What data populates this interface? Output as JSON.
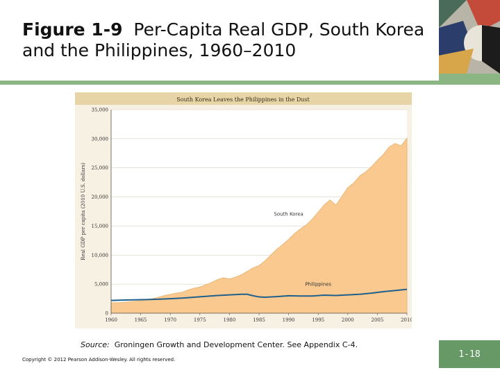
{
  "slide": {
    "title_bold": "Figure 1-9",
    "title_rest": "Per-Capita Real GDP, South Korea and the Philippines, 1960–2010",
    "source_label": "Source:",
    "source_text": "Groningen Growth and Development Center. See Appendix C-4.",
    "copyright": "Copyright © 2012 Pearson Addison-Wesley. All rights reserved.",
    "page_number": "1-18",
    "colors": {
      "accent_green": "#8bb582",
      "page_box": "#669966"
    }
  },
  "chart_data": {
    "type": "area",
    "title": "South Korea Leaves the Philippines in the Dust",
    "ylabel": "Real GDP per capita (2010 U.S. dollars)",
    "xlabel": "",
    "xlim": [
      1960,
      2010
    ],
    "ylim": [
      0,
      35000
    ],
    "x_ticks": [
      1960,
      1965,
      1970,
      1975,
      1980,
      1985,
      1990,
      1995,
      2000,
      2005,
      2010
    ],
    "y_ticks": [
      0,
      5000,
      10000,
      15000,
      20000,
      25000,
      30000,
      35000
    ],
    "y_tick_labels": [
      "0",
      "5,000",
      "10,000",
      "15,000",
      "20,000",
      "25,000",
      "30,000",
      "35,000"
    ],
    "grid": true,
    "series": [
      {
        "name": "South Korea",
        "color": "#f9c98f",
        "x": [
          1960,
          1961,
          1962,
          1963,
          1964,
          1965,
          1966,
          1967,
          1968,
          1969,
          1970,
          1971,
          1972,
          1973,
          1974,
          1975,
          1976,
          1977,
          1978,
          1979,
          1980,
          1981,
          1982,
          1983,
          1984,
          1985,
          1986,
          1987,
          1988,
          1989,
          1990,
          1991,
          1992,
          1993,
          1994,
          1995,
          1996,
          1997,
          1998,
          1999,
          2000,
          2001,
          2002,
          2003,
          2004,
          2005,
          2006,
          2007,
          2008,
          2009,
          2010
        ],
        "y": [
          1800,
          1800,
          1850,
          1950,
          2050,
          2150,
          2350,
          2500,
          2750,
          3050,
          3250,
          3450,
          3600,
          4000,
          4300,
          4500,
          4900,
          5300,
          5800,
          6100,
          5900,
          6200,
          6600,
          7200,
          7800,
          8200,
          9000,
          10000,
          11000,
          11800,
          12700,
          13700,
          14500,
          15200,
          16200,
          17400,
          18600,
          19500,
          18600,
          20100,
          21600,
          22400,
          23600,
          24300,
          25200,
          26300,
          27300,
          28600,
          29200,
          28800,
          30100
        ]
      },
      {
        "name": "Philippines",
        "color": "#1f5f8b",
        "x": [
          1960,
          1962,
          1964,
          1966,
          1968,
          1970,
          1972,
          1974,
          1976,
          1978,
          1980,
          1982,
          1983,
          1984,
          1985,
          1986,
          1988,
          1990,
          1992,
          1994,
          1996,
          1998,
          2000,
          2002,
          2004,
          2006,
          2008,
          2010
        ],
        "y": [
          2200,
          2250,
          2300,
          2350,
          2400,
          2500,
          2600,
          2750,
          2900,
          3050,
          3150,
          3250,
          3250,
          3000,
          2800,
          2750,
          2850,
          3000,
          2950,
          2950,
          3100,
          3050,
          3150,
          3250,
          3450,
          3700,
          3900,
          4100
        ]
      }
    ],
    "annotations": [
      {
        "text": "South Korea",
        "x": 1990,
        "y": 16800
      },
      {
        "text": "Philippines",
        "x": 1995,
        "y": 4700
      }
    ]
  }
}
